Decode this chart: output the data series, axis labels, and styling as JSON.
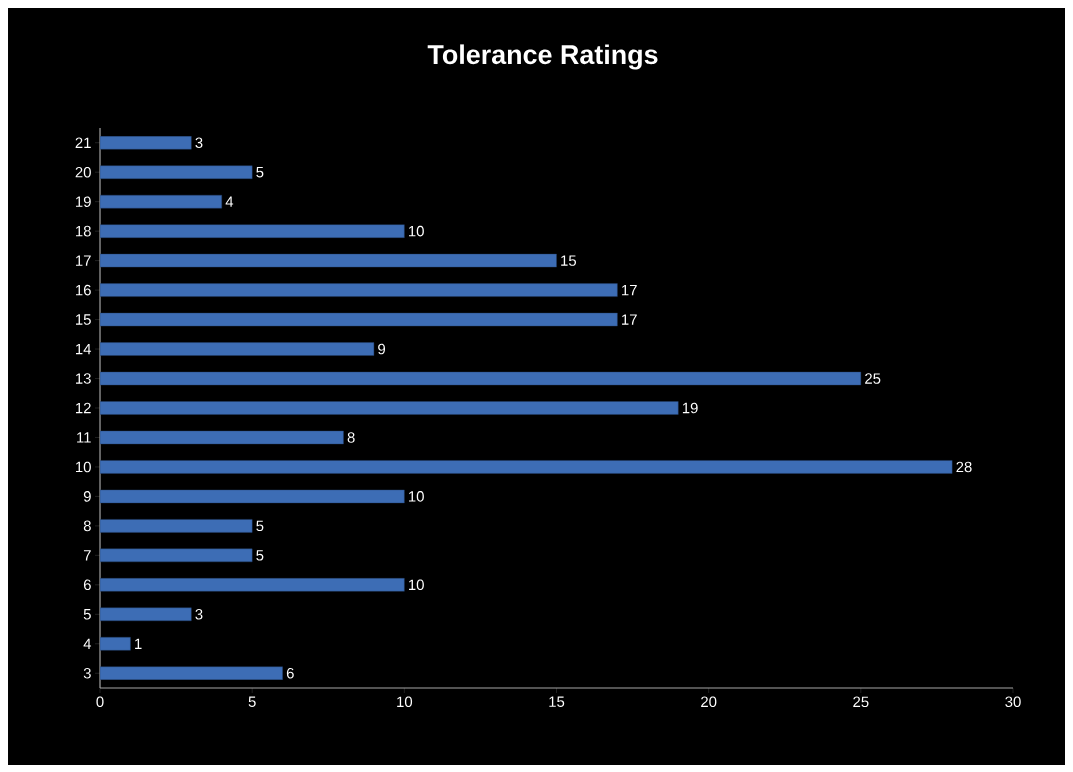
{
  "chart_data": {
    "type": "bar",
    "title": "Tolerance Ratings",
    "orientation": "horizontal",
    "categories": [
      "21",
      "20",
      "19",
      "18",
      "17",
      "16",
      "15",
      "14",
      "13",
      "12",
      "11",
      "10",
      "9",
      "8",
      "7",
      "6",
      "5",
      "4",
      "3"
    ],
    "values": [
      3,
      5,
      4,
      10,
      15,
      17,
      17,
      9,
      25,
      19,
      8,
      28,
      10,
      5,
      5,
      10,
      3,
      1,
      6
    ],
    "color": "#3d6db5",
    "xlim": [
      0,
      30
    ],
    "xticks": [
      0,
      5,
      10,
      15,
      20,
      25,
      30
    ],
    "data_labels": true
  }
}
